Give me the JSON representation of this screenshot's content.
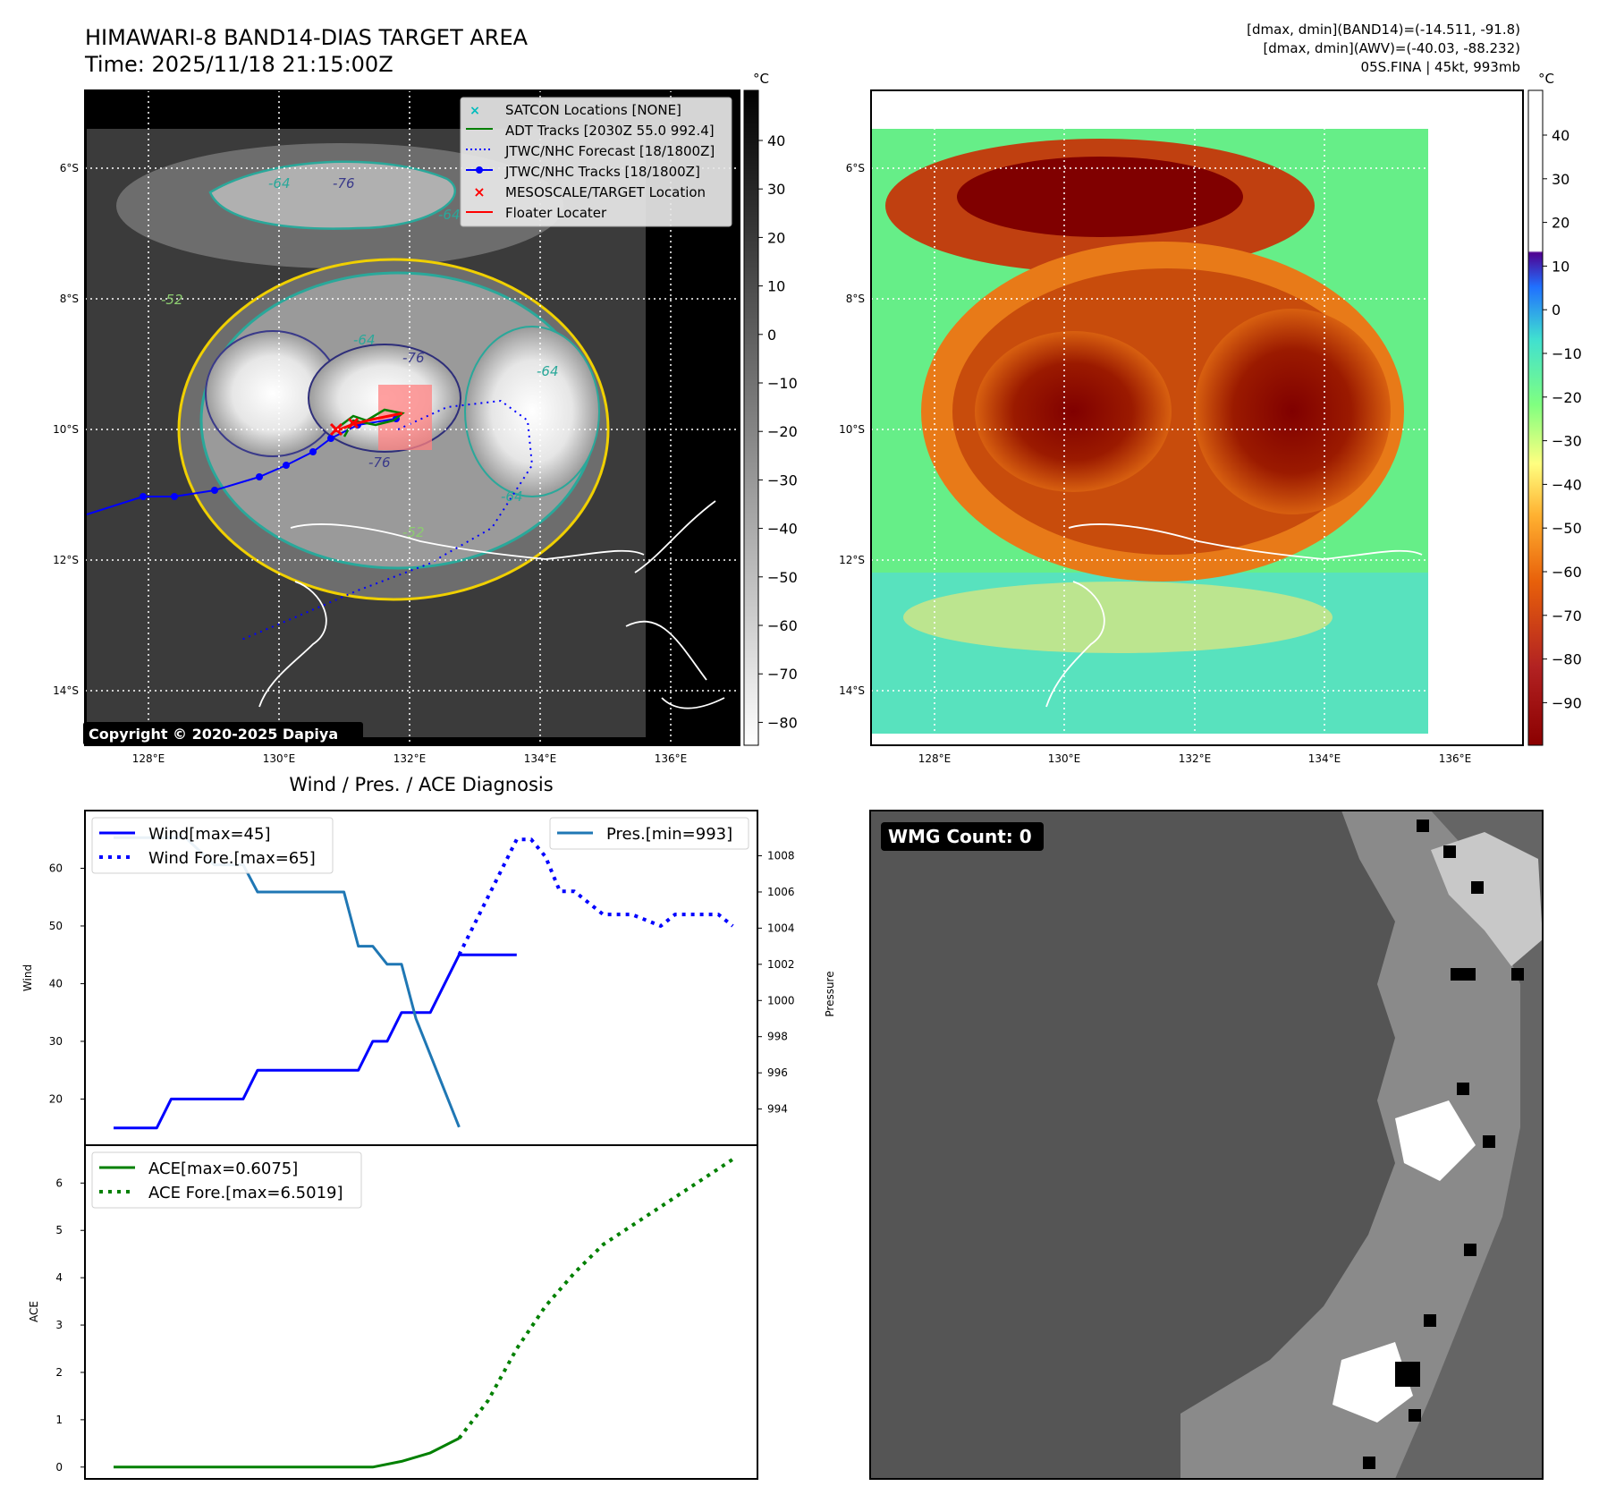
{
  "header": {
    "title": "HIMAWARI-8 BAND14-DIAS TARGET AREA",
    "time": "Time: 2025/11/18 21:15:00Z",
    "dmax_band14": "[dmax, dmin](BAND14)=(-14.511, -91.8)",
    "dmax_awv": "[dmax, dmin](AWV)=(-40.03, -88.232)",
    "storm_info": "05S.FINA | 45kt, 993mb"
  },
  "map": {
    "lat_labels": [
      "6°S",
      "8°S",
      "10°S",
      "12°S",
      "14°S"
    ],
    "lon_labels": [
      "128°E",
      "130°E",
      "132°E",
      "134°E",
      "136°E"
    ],
    "copyright": "Copyright © 2020-2025 Dapiya",
    "contour_labels": [
      "-64",
      "-76",
      "-64",
      "-64",
      "-76",
      "-64",
      "-76",
      "-64",
      "-52",
      "-52"
    ],
    "legend": [
      {
        "label": "SATCON Locations [NONE]",
        "color": "#00bcbc",
        "marker": "x"
      },
      {
        "label": "ADT Tracks [2030Z 55.0 992.4]",
        "color": "#008000",
        "marker": "line"
      },
      {
        "label": "JTWC/NHC Forecast [18/1800Z]",
        "color": "#0000ff",
        "marker": "dotted"
      },
      {
        "label": "JTWC/NHC Tracks [18/1800Z]",
        "color": "#0000ff",
        "marker": "dotline"
      },
      {
        "label": "MESOSCALE/TARGET Location",
        "color": "#ff0000",
        "marker": "x"
      },
      {
        "label": "Floater Locater",
        "color": "#ff0000",
        "marker": "line"
      }
    ]
  },
  "colorbar_gray": {
    "unit": "°C",
    "ticks": [
      "40",
      "30",
      "20",
      "10",
      "0",
      "−10",
      "−20",
      "−30",
      "−40",
      "−50",
      "−60",
      "−70",
      "−80"
    ]
  },
  "colorbar_awv": {
    "unit": "°C",
    "ticks": [
      "40",
      "30",
      "20",
      "10",
      "0",
      "−10",
      "−20",
      "−30",
      "−40",
      "−50",
      "−60",
      "−70",
      "−80",
      "−90"
    ]
  },
  "wmg": {
    "label": "WMG Count: 0"
  },
  "chart_data": [
    {
      "type": "line",
      "title": "Wind / Pres. / ACE Diagnosis",
      "ylabel": "Wind",
      "ylim": [
        12,
        70
      ],
      "yticks": [
        20,
        30,
        40,
        50,
        60
      ],
      "series": [
        {
          "name": "Wind[max=45]",
          "style": "solid",
          "color": "#0000ff",
          "x": [
            0,
            3,
            4,
            9,
            10,
            17,
            18,
            19,
            20,
            22,
            23,
            24,
            28
          ],
          "values": [
            15,
            15,
            20,
            20,
            25,
            25,
            30,
            30,
            35,
            35,
            40,
            45,
            45
          ]
        },
        {
          "name": "Wind Fore.[max=65]",
          "style": "dotted",
          "color": "#0000ff",
          "x": [
            24,
            26,
            28,
            29,
            30,
            31,
            32,
            34,
            35,
            36,
            38,
            39,
            40,
            42,
            43
          ],
          "values": [
            45,
            55,
            65,
            65,
            62,
            56,
            56,
            52,
            52,
            52,
            50,
            52,
            52,
            52,
            50
          ]
        }
      ]
    },
    {
      "type": "line",
      "ylabel": "Pressure",
      "ylim": [
        992.0,
        1010.5
      ],
      "yticks": [
        994,
        996,
        998,
        1000,
        1002,
        1004,
        1006,
        1008
      ],
      "series": [
        {
          "name": "Pres.[min=993]",
          "style": "solid",
          "color": "#1f77b4",
          "x": [
            0,
            5,
            7,
            9,
            10,
            16,
            17,
            18,
            19,
            20,
            21,
            22,
            23,
            24
          ],
          "values": [
            1009,
            1009,
            1007.5,
            1007.5,
            1006,
            1006,
            1003,
            1003,
            1002,
            1002,
            999,
            997,
            995,
            993
          ]
        }
      ]
    },
    {
      "type": "line",
      "ylabel": "ACE",
      "ylim": [
        -0.25,
        6.8
      ],
      "yticks": [
        0,
        1,
        2,
        3,
        4,
        5,
        6
      ],
      "series": [
        {
          "name": "ACE[max=0.6075]",
          "style": "solid",
          "color": "#008000",
          "x": [
            0,
            4,
            8,
            12,
            16,
            18,
            20,
            22,
            24
          ],
          "values": [
            0,
            0,
            0,
            0,
            0,
            0,
            0.12,
            0.3,
            0.6075
          ]
        },
        {
          "name": "ACE Fore.[max=6.5019]",
          "style": "dotted",
          "color": "#008000",
          "x": [
            24,
            26,
            28,
            30,
            32,
            34,
            36,
            38,
            40,
            42,
            43
          ],
          "values": [
            0.6075,
            1.4,
            2.5,
            3.4,
            4.1,
            4.7,
            5.1,
            5.5,
            5.9,
            6.3,
            6.5019
          ]
        }
      ]
    }
  ]
}
